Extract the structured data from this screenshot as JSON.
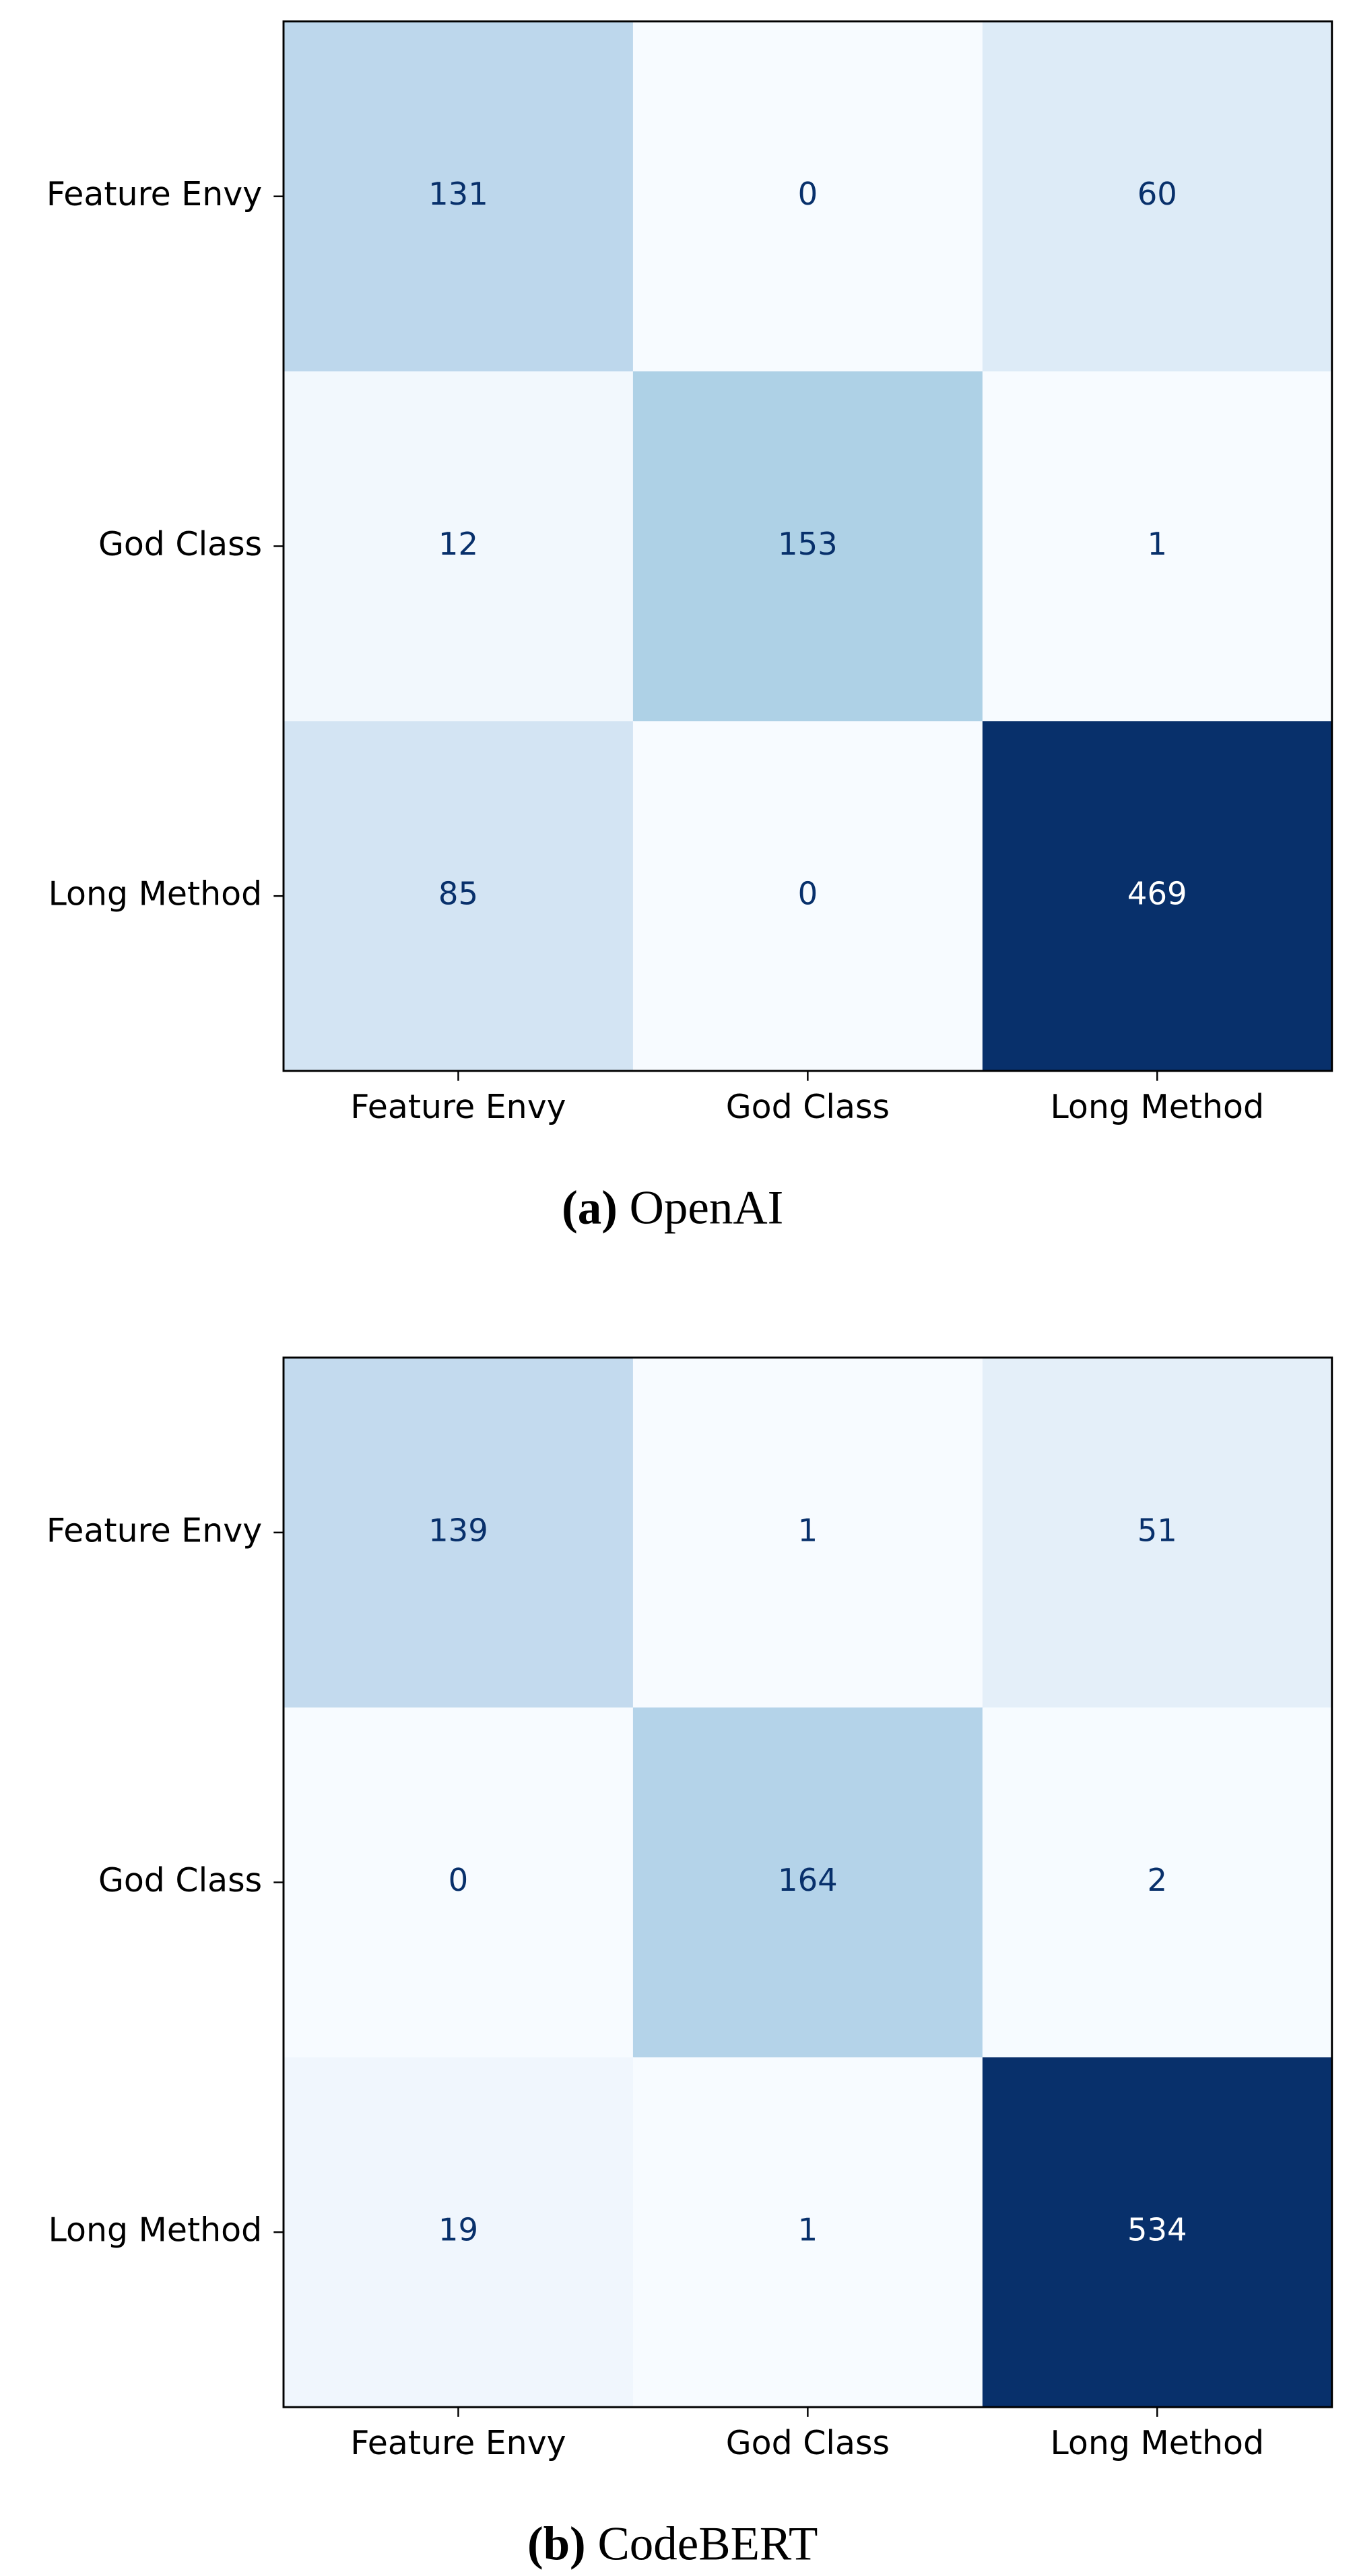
{
  "chart_data": [
    {
      "type": "heatmap",
      "categories": [
        "Feature Envy",
        "God Class",
        "Long Method"
      ],
      "y_categories": [
        "Feature Envy",
        "God Class",
        "Long Method"
      ],
      "values": [
        [
          131,
          0,
          60
        ],
        [
          12,
          153,
          1
        ],
        [
          85,
          0,
          469
        ]
      ],
      "colormap": [
        "#f7fbff",
        "#deebf7",
        "#c6dbef",
        "#9ecae1",
        "#6baed6",
        "#4292c6",
        "#2171b5",
        "#08519c",
        "#08306b"
      ],
      "caption": {
        "label": "(a)",
        "text": "OpenAI"
      }
    },
    {
      "type": "heatmap",
      "categories": [
        "Feature Envy",
        "God Class",
        "Long Method"
      ],
      "y_categories": [
        "Feature Envy",
        "God Class",
        "Long Method"
      ],
      "values": [
        [
          139,
          1,
          51
        ],
        [
          0,
          164,
          2
        ],
        [
          19,
          1,
          534
        ]
      ],
      "colormap": [
        "#f7fbff",
        "#deebf7",
        "#c6dbef",
        "#9ecae1",
        "#6baed6",
        "#4292c6",
        "#2171b5",
        "#08519c",
        "#08306b"
      ],
      "caption": {
        "label": "(b)",
        "text": "CodeBERT"
      }
    }
  ]
}
